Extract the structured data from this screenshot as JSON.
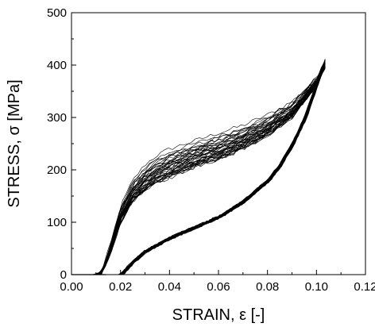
{
  "chart_data": {
    "type": "line",
    "title": "",
    "xlabel": "STRAIN, ε [-]",
    "ylabel": "STRESS, σ [MPa]",
    "xlim": [
      0.0,
      0.12
    ],
    "ylim": [
      0,
      500
    ],
    "x_ticks": [
      0.0,
      0.02,
      0.04,
      0.06,
      0.08,
      0.1,
      0.12
    ],
    "x_tick_labels": [
      "0.00",
      "0.02",
      "0.04",
      "0.06",
      "0.08",
      "0.10",
      "0.12"
    ],
    "y_ticks": [
      0,
      100,
      200,
      300,
      400,
      500
    ],
    "y_tick_labels": [
      "0",
      "100",
      "200",
      "300",
      "400",
      "500"
    ],
    "grid": false,
    "legend": false,
    "series_description": "superelastic hysteresis loops, approx. 40 overlapping cycles",
    "cycle_count": 40,
    "loading_path": {
      "x": [
        0.0,
        0.012,
        0.016,
        0.02,
        0.025,
        0.03,
        0.035,
        0.04,
        0.05,
        0.06,
        0.07,
        0.08,
        0.09,
        0.1,
        0.104
      ],
      "y": [
        0,
        0,
        40,
        100,
        140,
        160,
        175,
        185,
        205,
        220,
        240,
        265,
        300,
        360,
        410
      ]
    },
    "unloading_path": {
      "x": [
        0.104,
        0.101,
        0.098,
        0.095,
        0.09,
        0.085,
        0.08,
        0.07,
        0.06,
        0.05,
        0.04,
        0.03,
        0.025,
        0.02
      ],
      "y": [
        410,
        380,
        340,
        300,
        250,
        210,
        180,
        140,
        110,
        90,
        70,
        45,
        25,
        0
      ]
    },
    "first_cycle_loading": {
      "x": [
        0.012,
        0.016,
        0.02,
        0.025,
        0.03,
        0.035,
        0.04,
        0.05,
        0.06,
        0.07,
        0.08,
        0.09,
        0.1,
        0.104
      ],
      "y": [
        0,
        60,
        130,
        180,
        210,
        228,
        240,
        255,
        270,
        285,
        305,
        330,
        375,
        415
      ]
    }
  }
}
